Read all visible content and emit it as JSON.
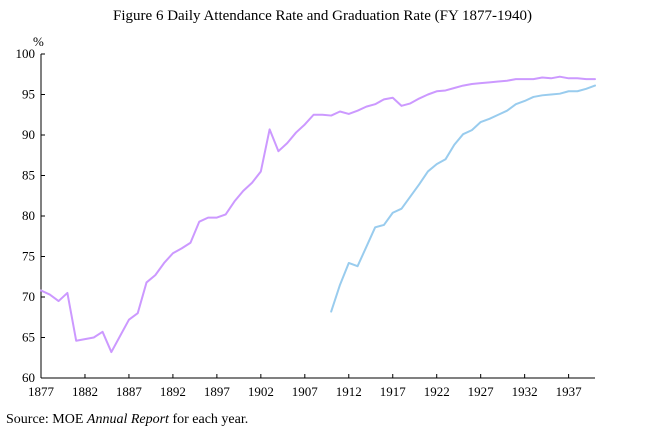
{
  "chart_data": {
    "type": "line",
    "title": "Figure 6 Daily Attendance Rate and Graduation Rate (FY 1877-1940)",
    "xlabel": "",
    "ylabel": "%",
    "xlim": [
      1877,
      1940
    ],
    "ylim": [
      60,
      100
    ],
    "x_ticks": [
      1877,
      1882,
      1887,
      1892,
      1897,
      1902,
      1907,
      1912,
      1917,
      1922,
      1927,
      1932,
      1937
    ],
    "y_ticks": [
      60,
      65,
      70,
      75,
      80,
      85,
      90,
      95,
      100
    ],
    "grid": false,
    "legend": "none",
    "series": [
      {
        "color": "#cc99ff",
        "points": [
          [
            1877,
            70.8
          ],
          [
            1878,
            70.3
          ],
          [
            1879,
            69.5
          ],
          [
            1880,
            70.5
          ],
          [
            1881,
            64.6
          ],
          [
            1882,
            64.8
          ],
          [
            1883,
            65.0
          ],
          [
            1884,
            65.7
          ],
          [
            1885,
            63.2
          ],
          [
            1886,
            65.2
          ],
          [
            1887,
            67.2
          ],
          [
            1888,
            68.0
          ],
          [
            1889,
            71.8
          ],
          [
            1890,
            72.7
          ],
          [
            1891,
            74.2
          ],
          [
            1892,
            75.4
          ],
          [
            1893,
            76.0
          ],
          [
            1894,
            76.7
          ],
          [
            1895,
            79.3
          ],
          [
            1896,
            79.8
          ],
          [
            1897,
            79.8
          ],
          [
            1898,
            80.2
          ],
          [
            1899,
            81.8
          ],
          [
            1900,
            83.1
          ],
          [
            1901,
            84.1
          ],
          [
            1902,
            85.5
          ],
          [
            1903,
            90.7
          ],
          [
            1904,
            88.0
          ],
          [
            1905,
            89.0
          ],
          [
            1906,
            90.3
          ],
          [
            1907,
            91.3
          ],
          [
            1908,
            92.5
          ],
          [
            1909,
            92.5
          ],
          [
            1910,
            92.4
          ],
          [
            1911,
            92.9
          ],
          [
            1912,
            92.6
          ],
          [
            1913,
            93.0
          ],
          [
            1914,
            93.5
          ],
          [
            1915,
            93.8
          ],
          [
            1916,
            94.4
          ],
          [
            1917,
            94.6
          ],
          [
            1918,
            93.6
          ],
          [
            1919,
            93.9
          ],
          [
            1920,
            94.5
          ],
          [
            1921,
            95.0
          ],
          [
            1922,
            95.4
          ],
          [
            1923,
            95.5
          ],
          [
            1924,
            95.8
          ],
          [
            1925,
            96.1
          ],
          [
            1926,
            96.3
          ],
          [
            1927,
            96.4
          ],
          [
            1928,
            96.5
          ],
          [
            1929,
            96.6
          ],
          [
            1930,
            96.7
          ],
          [
            1931,
            96.9
          ],
          [
            1932,
            96.9
          ],
          [
            1933,
            96.9
          ],
          [
            1934,
            97.1
          ],
          [
            1935,
            97.0
          ],
          [
            1936,
            97.2
          ],
          [
            1937,
            97.0
          ],
          [
            1938,
            97.0
          ],
          [
            1939,
            96.9
          ],
          [
            1940,
            96.9
          ]
        ]
      },
      {
        "color": "#99ccee",
        "points": [
          [
            1910,
            68.2
          ],
          [
            1911,
            71.5
          ],
          [
            1912,
            74.2
          ],
          [
            1913,
            73.8
          ],
          [
            1914,
            76.2
          ],
          [
            1915,
            78.6
          ],
          [
            1916,
            78.9
          ],
          [
            1917,
            80.4
          ],
          [
            1918,
            80.9
          ],
          [
            1919,
            82.4
          ],
          [
            1920,
            83.9
          ],
          [
            1921,
            85.5
          ],
          [
            1922,
            86.4
          ],
          [
            1923,
            87.0
          ],
          [
            1924,
            88.8
          ],
          [
            1925,
            90.1
          ],
          [
            1926,
            90.6
          ],
          [
            1927,
            91.6
          ],
          [
            1928,
            92.0
          ],
          [
            1929,
            92.5
          ],
          [
            1930,
            93.0
          ],
          [
            1931,
            93.8
          ],
          [
            1932,
            94.2
          ],
          [
            1933,
            94.7
          ],
          [
            1934,
            94.9
          ],
          [
            1935,
            95.0
          ],
          [
            1936,
            95.1
          ],
          [
            1937,
            95.4
          ],
          [
            1938,
            95.4
          ],
          [
            1939,
            95.7
          ],
          [
            1940,
            96.1
          ]
        ]
      }
    ]
  },
  "source": {
    "prefix": "Source:  MOE ",
    "italic": "Annual Report",
    "suffix": " for each year."
  }
}
